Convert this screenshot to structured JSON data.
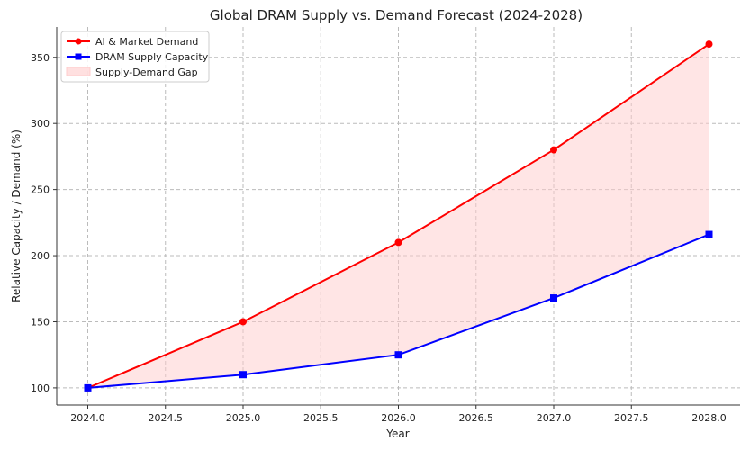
{
  "chart_data": {
    "type": "line",
    "title": "Global DRAM Supply vs. Demand Forecast (2024-2028)",
    "xlabel": "Year",
    "ylabel": "Relative Capacity / Demand (%)",
    "x": [
      2024,
      2025,
      2026,
      2027,
      2028
    ],
    "xlim": [
      2023.8,
      2028.2
    ],
    "ylim": [
      87,
      373
    ],
    "xticks": [
      "2024.0",
      "2024.5",
      "2025.0",
      "2025.5",
      "2026.0",
      "2026.5",
      "2027.0",
      "2027.5",
      "2028.0"
    ],
    "yticks": [
      "100",
      "150",
      "200",
      "250",
      "300",
      "350"
    ],
    "grid": true,
    "legend_position": "top-left",
    "series": [
      {
        "name": "AI & Market Demand",
        "color": "#ff0000",
        "marker": "circle",
        "values": [
          100,
          150,
          210,
          280,
          360
        ]
      },
      {
        "name": "DRAM Supply Capacity",
        "color": "#0000ff",
        "marker": "square",
        "values": [
          100,
          110,
          125,
          168,
          216
        ]
      }
    ],
    "fill": {
      "name": "Supply-Demand Gap",
      "color": "#ffcccc"
    }
  }
}
